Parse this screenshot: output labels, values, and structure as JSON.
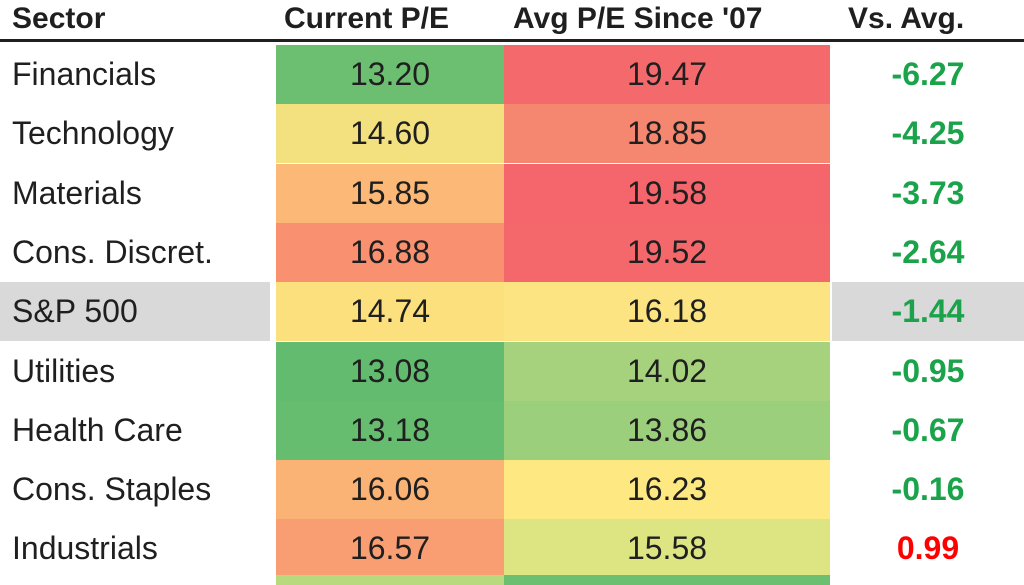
{
  "header": {
    "sector": "Sector",
    "current_pe": "Current P/E",
    "avg_pe": "Avg P/E Since '07",
    "vs_avg": "Vs. Avg."
  },
  "colors": {
    "positive_text": "#1aa34a",
    "negative_text": "#ff0000",
    "highlight_row": "#d9d9d9"
  },
  "chart_data": {
    "type": "table",
    "columns": [
      "Sector",
      "Current P/E",
      "Avg P/E Since '07",
      "Vs. Avg."
    ],
    "rows": [
      {
        "sector": "Financials",
        "current": "13.20",
        "avg": "19.47",
        "vs": "-6.27",
        "current_color": "#6cbf70",
        "avg_color": "#f4696b",
        "vs_color": "#1aa34a",
        "highlight": false
      },
      {
        "sector": "Technology",
        "current": "14.60",
        "avg": "18.85",
        "vs": "-4.25",
        "current_color": "#f3e07f",
        "avg_color": "#f58670",
        "vs_color": "#1aa34a",
        "highlight": false
      },
      {
        "sector": "Materials",
        "current": "15.85",
        "avg": "19.58",
        "vs": "-3.73",
        "current_color": "#fbb876",
        "avg_color": "#f4666b",
        "vs_color": "#1aa34a",
        "highlight": false
      },
      {
        "sector": "Cons. Discret.",
        "current": "16.88",
        "avg": "19.52",
        "vs": "-2.64",
        "current_color": "#f99070",
        "avg_color": "#f4686b",
        "vs_color": "#1aa34a",
        "highlight": false
      },
      {
        "sector": "S&P 500",
        "current": "14.74",
        "avg": "16.18",
        "vs": "-1.44",
        "current_color": "#fde07e",
        "avg_color": "#fde482",
        "vs_color": "#1aa34a",
        "highlight": true
      },
      {
        "sector": "Utilities",
        "current": "13.08",
        "avg": "14.02",
        "vs": "-0.95",
        "current_color": "#62bb6e",
        "avg_color": "#a6d27e",
        "vs_color": "#1aa34a",
        "highlight": false
      },
      {
        "sector": "Health Care",
        "current": "13.18",
        "avg": "13.86",
        "vs": "-0.67",
        "current_color": "#66bd6f",
        "avg_color": "#9bcf7c",
        "vs_color": "#1aa34a",
        "highlight": false
      },
      {
        "sector": "Cons. Staples",
        "current": "16.06",
        "avg": "16.23",
        "vs": "-0.16",
        "current_color": "#fbb275",
        "avg_color": "#fde882",
        "vs_color": "#1aa34a",
        "highlight": false
      },
      {
        "sector": "Industrials",
        "current": "16.57",
        "avg": "15.58",
        "vs": "0.99",
        "current_color": "#f99d72",
        "avg_color": "#dde582",
        "vs_color": "#ff0000",
        "highlight": false
      }
    ],
    "partial_next_row": {
      "current_color": "#b9d97f",
      "avg_color": "#6cbf70"
    }
  }
}
